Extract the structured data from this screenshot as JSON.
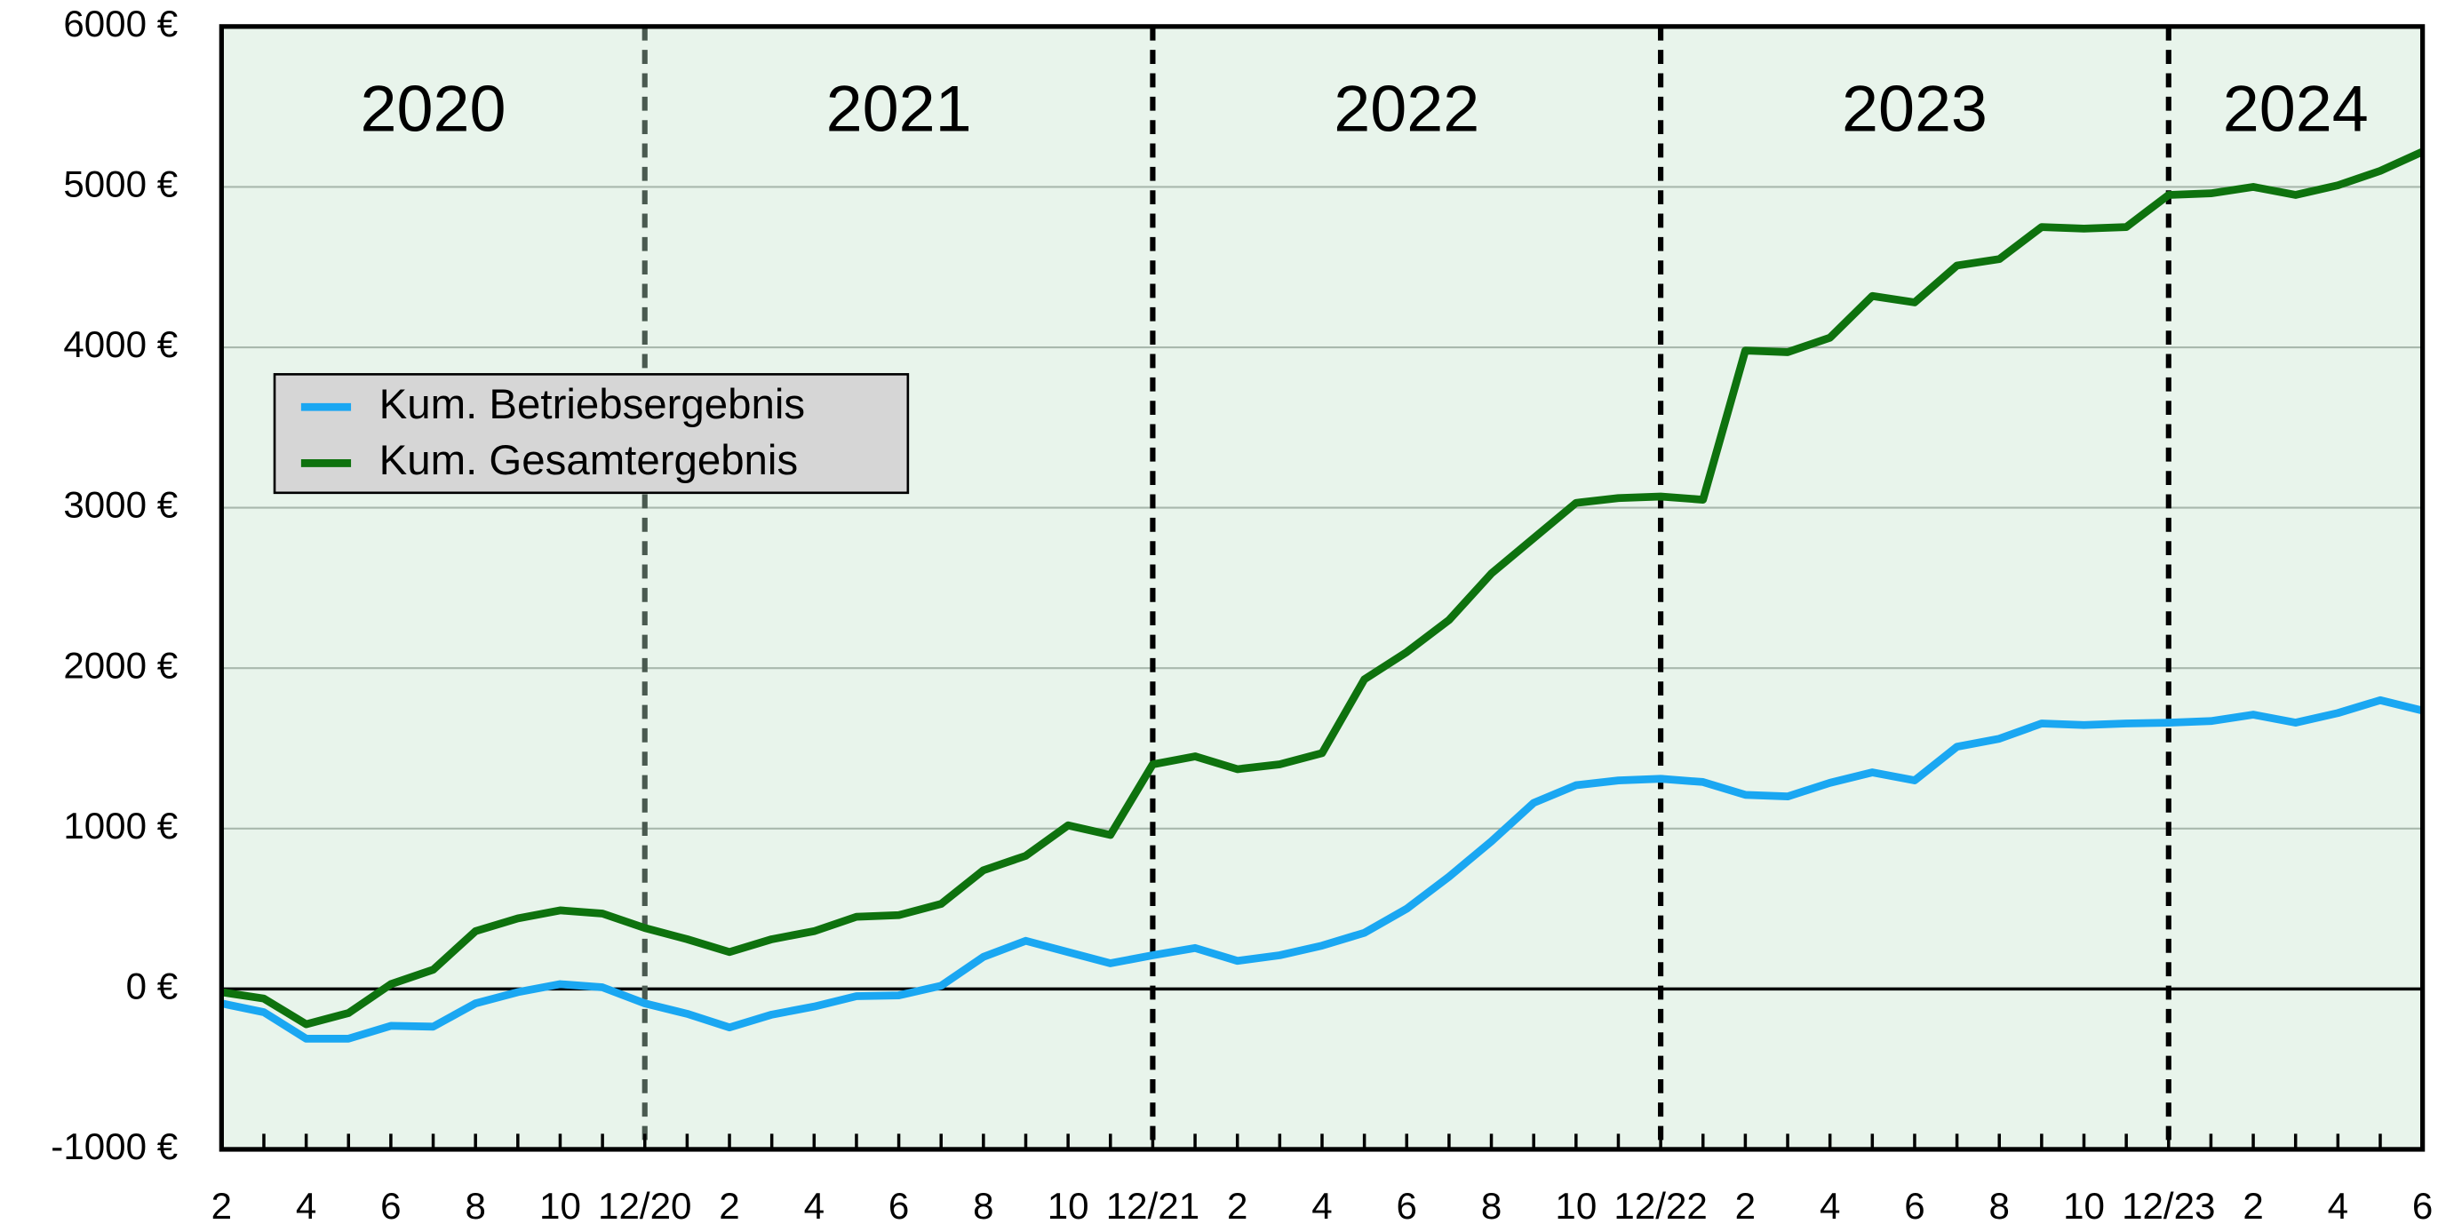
{
  "chart_data": {
    "type": "line",
    "categories": [
      "2",
      null,
      "4",
      null,
      "6",
      null,
      "8",
      null,
      "10",
      null,
      "12/20",
      null,
      "2",
      null,
      "4",
      null,
      "6",
      null,
      "8",
      null,
      "10",
      null,
      "12/21",
      null,
      "2",
      null,
      "4",
      null,
      "6",
      null,
      "8",
      null,
      "10",
      null,
      "12/22",
      null,
      "2",
      null,
      "4",
      null,
      "6",
      null,
      "8",
      null,
      "10",
      null,
      "12/23",
      null,
      "2",
      null,
      "4",
      null,
      "6"
    ],
    "year_labels": [
      "2020",
      "2021",
      "2022",
      "2023",
      "2024"
    ],
    "series": [
      {
        "name": "Kum. Betriebsergebnis",
        "color": "#1aa7f2",
        "values": [
          -90,
          -145,
          -310,
          -310,
          -230,
          -235,
          -90,
          -20,
          30,
          10,
          -90,
          -155,
          -240,
          -160,
          -110,
          -45,
          -40,
          20,
          200,
          300,
          230,
          160,
          210,
          255,
          175,
          210,
          270,
          350,
          500,
          700,
          920,
          1160,
          1270,
          1300,
          1310,
          1290,
          1210,
          1200,
          1285,
          1350,
          1300,
          1510,
          1560,
          1655,
          1645,
          1655,
          1660,
          1670,
          1710,
          1660,
          1720,
          1800,
          1735
        ]
      },
      {
        "name": "Kum. Gesamtergebnis",
        "color": "#0e720e",
        "values": [
          -20,
          -60,
          -220,
          -150,
          30,
          120,
          360,
          440,
          490,
          470,
          380,
          310,
          230,
          310,
          360,
          450,
          460,
          530,
          740,
          830,
          1020,
          960,
          1400,
          1450,
          1370,
          1400,
          1470,
          1930,
          2100,
          2300,
          2590,
          2810,
          3030,
          3060,
          3070,
          3050,
          3980,
          3970,
          4060,
          4320,
          4280,
          4510,
          4550,
          4750,
          4740,
          4750,
          4950,
          4960,
          5000,
          4950,
          5010,
          5100,
          5220
        ]
      }
    ],
    "ylim": [
      -1000,
      6000
    ],
    "yticks": [
      {
        "value": -1000,
        "label": "-1000 €"
      },
      {
        "value": 0,
        "label": "0 €"
      },
      {
        "value": 1000,
        "label": "1000 €"
      },
      {
        "value": 2000,
        "label": "2000 €"
      },
      {
        "value": 3000,
        "label": "3000 €"
      },
      {
        "value": 4000,
        "label": "4000 €"
      },
      {
        "value": 5000,
        "label": "5000 €"
      },
      {
        "value": 6000,
        "label": "6000 €"
      }
    ],
    "grid": true,
    "background": "#e8f4eb",
    "legend": "upper left"
  }
}
